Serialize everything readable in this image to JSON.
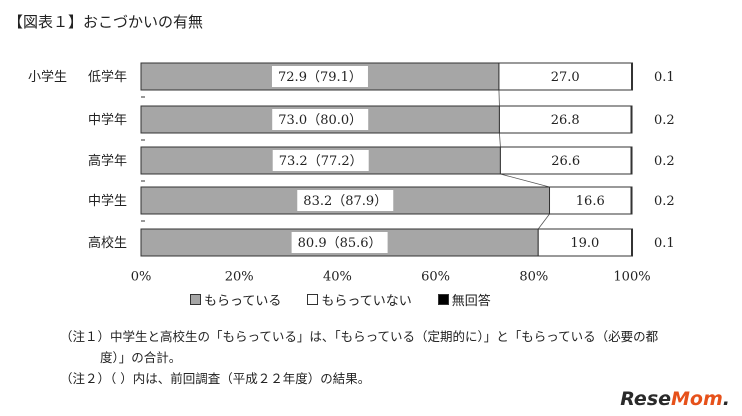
{
  "title": "【図表１】おこづかいの有無",
  "legend": {
    "items": [
      {
        "label": "もらっている",
        "color": "#a6a6a6"
      },
      {
        "label": "もらっていない",
        "color": "#ffffff"
      },
      {
        "label": "無回答",
        "color": "#000000"
      }
    ]
  },
  "notes": [
    "（注１）中学生と高校生の「もらっている」は、「もらっている（定期的に）」と「もらっている（必要の都",
    "度）」の合計。",
    "（注２）（ ）内は、前回調査（平成２２年度）の結果。"
  ],
  "brand": {
    "prefix": "Rese",
    "highlight": "Mom",
    "suffix": "."
  },
  "chart_data": {
    "type": "bar",
    "orientation": "horizontal",
    "stacked": true,
    "percent": true,
    "group_label": "小学生",
    "categories": [
      "低学年",
      "中学年",
      "高学年",
      "中学生",
      "高校生"
    ],
    "series": [
      {
        "name": "もらっている",
        "values": [
          72.9,
          73.0,
          73.2,
          83.2,
          80.9
        ],
        "labels": [
          "72.9（79.1）",
          "73.0（80.0）",
          "73.2（77.2）",
          "83.2（87.9）",
          "80.9（85.6）"
        ],
        "color": "#a6a6a6"
      },
      {
        "name": "もらっていない",
        "values": [
          27.0,
          26.8,
          26.6,
          16.6,
          19.0
        ],
        "labels": [
          "27.0",
          "26.8",
          "26.6",
          "16.6",
          "19.0"
        ],
        "color": "#ffffff"
      },
      {
        "name": "無回答",
        "values": [
          0.1,
          0.2,
          0.2,
          0.2,
          0.1
        ],
        "labels": [
          "0.1",
          "0.2",
          "0.2",
          "0.2",
          "0.1"
        ],
        "color": "#000000"
      }
    ],
    "xticks": [
      "0%",
      "20%",
      "40%",
      "60%",
      "80%",
      "100%"
    ],
    "xlim": [
      0,
      100
    ],
    "legend_position": "bottom"
  }
}
